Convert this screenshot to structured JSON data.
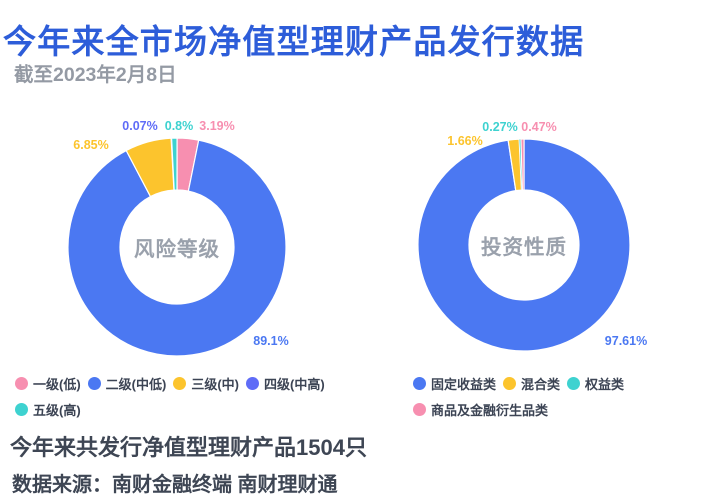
{
  "title": "今年来全市场净值型理财产品发行数据",
  "subtitle": "截至2023年2月8日",
  "footer": {
    "summary": "今年来共发行净值型理财产品1504只",
    "source": "数据来源：南财金融终端 南财理财通"
  },
  "colors": {
    "title": "#2D5DD9",
    "text": "#3C4454",
    "center_label": "#9AA1AC"
  },
  "chart_data": [
    {
      "type": "pie",
      "title": "风险等级",
      "legend_position": "bottom",
      "series": [
        {
          "name": "一级(低)",
          "value": 3.19,
          "label": "3.19%",
          "color": "#F78FB0"
        },
        {
          "name": "二级(中低)",
          "value": 89.1,
          "label": "89.1%",
          "color": "#4B78F2"
        },
        {
          "name": "三级(中)",
          "value": 6.85,
          "label": "6.85%",
          "color": "#FCC42D"
        },
        {
          "name": "四级(中高)",
          "value": 0.07,
          "label": "0.07%",
          "color": "#5F6CF7"
        },
        {
          "name": "五级(高)",
          "value": 0.8,
          "label": "0.8%",
          "color": "#3ED2D0"
        }
      ]
    },
    {
      "type": "pie",
      "title": "投资性质",
      "legend_position": "bottom",
      "series": [
        {
          "name": "固定收益类",
          "value": 97.61,
          "label": "97.61%",
          "color": "#4B78F2"
        },
        {
          "name": "混合类",
          "value": 1.66,
          "label": "1.66%",
          "color": "#FCC42D"
        },
        {
          "name": "权益类",
          "value": 0.27,
          "label": "0.27%",
          "color": "#3ED2D0"
        },
        {
          "name": "商品及金融衍生品类",
          "value": 0.47,
          "label": "0.47%",
          "color": "#F78FB0"
        }
      ]
    }
  ]
}
